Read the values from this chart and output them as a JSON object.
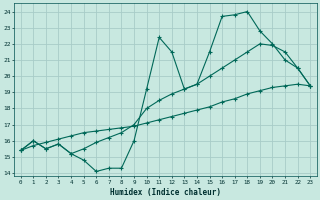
{
  "xlabel": "Humidex (Indice chaleur)",
  "bg_color": "#c8e8e0",
  "grid_color": "#a8ccc8",
  "line_color": "#006858",
  "xlim": [
    -0.5,
    23.5
  ],
  "ylim": [
    13.8,
    24.5
  ],
  "yticks": [
    14,
    15,
    16,
    17,
    18,
    19,
    20,
    21,
    22,
    23,
    24
  ],
  "xticks": [
    0,
    1,
    2,
    3,
    4,
    5,
    6,
    7,
    8,
    9,
    10,
    11,
    12,
    13,
    14,
    15,
    16,
    17,
    18,
    19,
    20,
    21,
    22,
    23
  ],
  "line1_x": [
    0,
    1,
    2,
    3,
    4,
    5,
    6,
    7,
    8,
    9,
    10,
    11,
    12,
    13,
    14,
    15,
    16,
    17,
    18,
    19,
    20,
    21,
    22,
    23
  ],
  "line1_y": [
    15.4,
    16.0,
    15.5,
    15.8,
    15.2,
    14.8,
    14.1,
    14.3,
    14.3,
    16.0,
    19.2,
    22.4,
    21.5,
    19.2,
    19.5,
    21.5,
    23.7,
    23.8,
    24.0,
    22.8,
    22.0,
    21.0,
    20.5,
    19.4
  ],
  "line2_x": [
    0,
    1,
    2,
    3,
    4,
    5,
    6,
    7,
    8,
    9,
    10,
    11,
    12,
    13,
    14,
    15,
    16,
    17,
    18,
    19,
    20,
    21,
    22,
    23
  ],
  "line2_y": [
    15.4,
    16.0,
    15.5,
    15.8,
    15.2,
    15.5,
    15.9,
    16.2,
    16.5,
    17.0,
    18.0,
    18.5,
    18.9,
    19.2,
    19.5,
    20.0,
    20.5,
    21.0,
    21.5,
    22.0,
    21.9,
    21.5,
    20.5,
    19.4
  ],
  "line3_x": [
    0,
    1,
    2,
    3,
    4,
    5,
    6,
    7,
    8,
    9,
    10,
    11,
    12,
    13,
    14,
    15,
    16,
    17,
    18,
    19,
    20,
    21,
    22,
    23
  ],
  "line3_y": [
    15.4,
    15.7,
    15.9,
    16.1,
    16.3,
    16.5,
    16.6,
    16.7,
    16.8,
    16.9,
    17.1,
    17.3,
    17.5,
    17.7,
    17.9,
    18.1,
    18.4,
    18.6,
    18.9,
    19.1,
    19.3,
    19.4,
    19.5,
    19.4
  ]
}
